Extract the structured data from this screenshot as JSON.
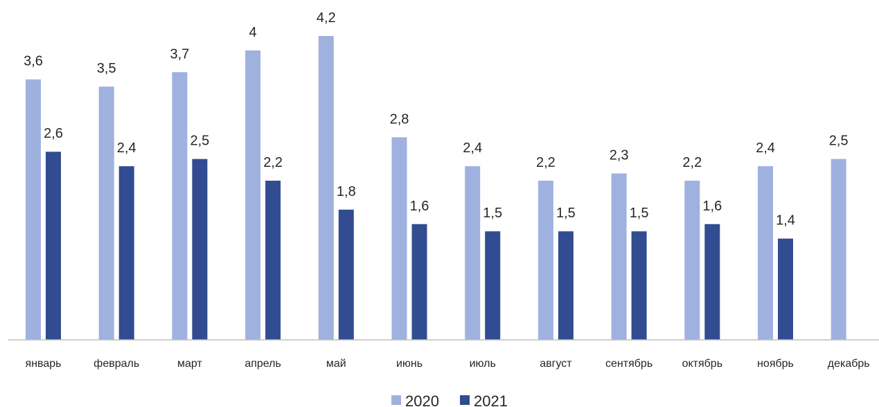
{
  "chart_data": {
    "type": "bar",
    "title": "",
    "xlabel": "",
    "ylabel": "",
    "ylim": [
      0,
      4.2
    ],
    "grid": false,
    "legend_position": "bottom-center",
    "categories": [
      "январь",
      "февраль",
      "март",
      "апрель",
      "май",
      "июнь",
      "июль",
      "август",
      "сентябрь",
      "октябрь",
      "ноябрь",
      "декабрь"
    ],
    "series": [
      {
        "name": "2020",
        "color": "#9fb1de",
        "values": [
          3.6,
          3.5,
          3.7,
          4,
          4.2,
          2.8,
          2.4,
          2.2,
          2.3,
          2.2,
          2.4,
          2.5
        ],
        "labels": [
          "3,6",
          "3,5",
          "3,7",
          "4",
          "4,2",
          "2,8",
          "2,4",
          "2,2",
          "2,3",
          "2,2",
          "2,4",
          "2,5"
        ]
      },
      {
        "name": "2021",
        "color": "#314c91",
        "values": [
          2.6,
          2.4,
          2.5,
          2.2,
          1.8,
          1.6,
          1.5,
          1.5,
          1.5,
          1.6,
          1.4,
          null
        ],
        "labels": [
          "2,6",
          "2,4",
          "2,5",
          "2,2",
          "1,8",
          "1,6",
          "1,5",
          "1,5",
          "1,5",
          "1,6",
          "1,4",
          ""
        ]
      }
    ]
  }
}
